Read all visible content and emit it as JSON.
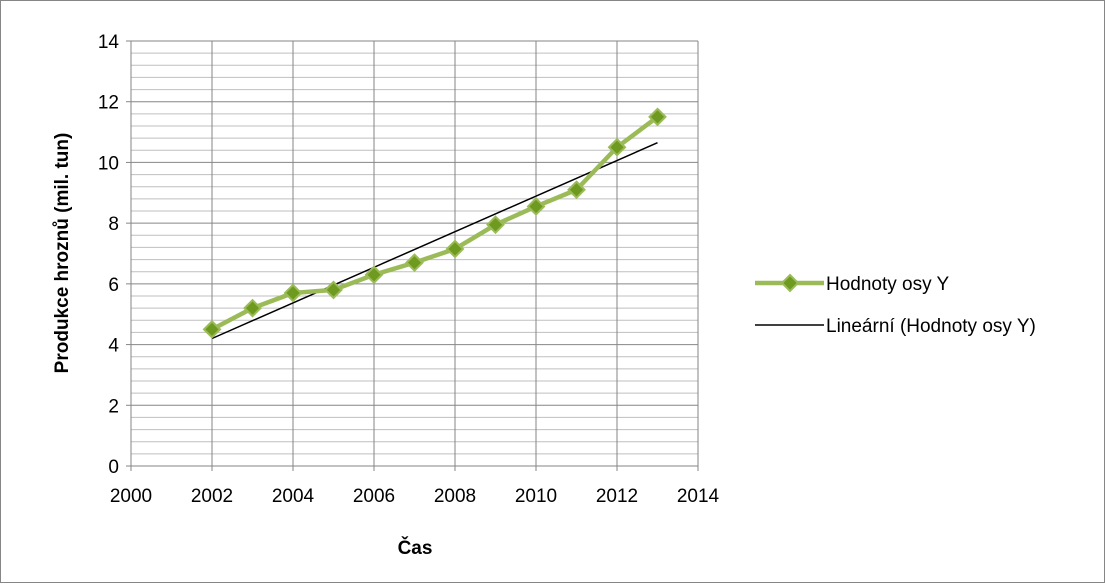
{
  "chart_data": {
    "type": "scatter",
    "title": "",
    "xlabel": "Čas",
    "ylabel": "Produkce hroznů (mil. tun)",
    "xlim": [
      2000,
      2014
    ],
    "ylim": [
      0,
      14
    ],
    "x_ticks": [
      2000,
      2002,
      2004,
      2006,
      2008,
      2010,
      2012,
      2014
    ],
    "y_ticks": [
      0,
      2,
      4,
      6,
      8,
      10,
      12,
      14
    ],
    "y_minor_step": 0.4,
    "grid": true,
    "legend_position": "right",
    "series": [
      {
        "name": "Hodnoty osy Y",
        "style": "line-with-diamond-markers",
        "color": "#9bbb59",
        "marker_color": "#6e9a1f",
        "x": [
          2002,
          2003,
          2004,
          2005,
          2006,
          2007,
          2008,
          2009,
          2010,
          2011,
          2012,
          2013
        ],
        "y": [
          4.5,
          5.2,
          5.7,
          5.8,
          6.3,
          6.7,
          7.15,
          7.95,
          8.55,
          9.1,
          10.5,
          11.5
        ]
      },
      {
        "name": "Lineární (Hodnoty osy Y)",
        "style": "trendline",
        "color": "#000000",
        "x": [
          2002,
          2013
        ],
        "y": [
          4.2,
          10.65
        ]
      }
    ]
  }
}
